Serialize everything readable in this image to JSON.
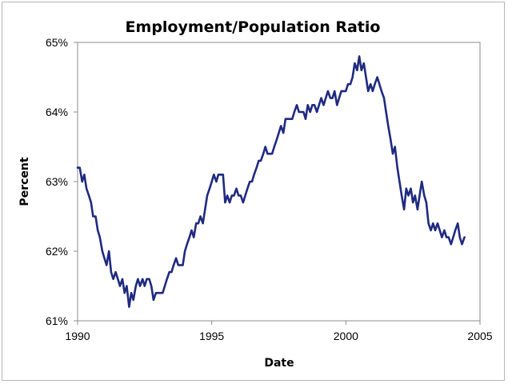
{
  "chart_data": {
    "type": "line",
    "title": "Employment/Population Ratio",
    "xlabel": "Date",
    "ylabel": "Percent",
    "xlim": [
      1990,
      2005
    ],
    "ylim": [
      61,
      65
    ],
    "x_ticks": [
      1990,
      1995,
      2000,
      2005
    ],
    "y_ticks": [
      61,
      62,
      63,
      64,
      65
    ],
    "x_tick_labels": [
      "1990",
      "1995",
      "2000",
      "2005"
    ],
    "y_tick_labels": [
      "61%",
      "62%",
      "63%",
      "64%",
      "65%"
    ],
    "grid": false,
    "legend": "none",
    "line_color": "#1f2a80",
    "series": [
      {
        "x": [
          1990.0,
          1990.08,
          1990.17,
          1990.25,
          1990.33,
          1990.42,
          1990.5,
          1990.58,
          1990.67,
          1990.75,
          1990.83,
          1990.92,
          1991.0,
          1991.08,
          1991.17,
          1991.25,
          1991.33,
          1991.42,
          1991.5,
          1991.58,
          1991.67,
          1991.75,
          1991.83,
          1991.92,
          1992.0,
          1992.08,
          1992.17,
          1992.25,
          1992.33,
          1992.42,
          1992.5,
          1992.58,
          1992.67,
          1992.75,
          1992.83,
          1992.92,
          1993.0,
          1993.08,
          1993.17,
          1993.25,
          1993.33,
          1993.42,
          1993.5,
          1993.58,
          1993.67,
          1993.75,
          1993.83,
          1993.92,
          1994.0,
          1994.08,
          1994.17,
          1994.25,
          1994.33,
          1994.42,
          1994.5,
          1994.58,
          1994.67,
          1994.75,
          1994.83,
          1994.92,
          1995.0,
          1995.08,
          1995.17,
          1995.25,
          1995.33,
          1995.42,
          1995.5,
          1995.58,
          1995.67,
          1995.75,
          1995.83,
          1995.92,
          1996.0,
          1996.08,
          1996.17,
          1996.25,
          1996.33,
          1996.42,
          1996.5,
          1996.58,
          1996.67,
          1996.75,
          1996.83,
          1996.92,
          1997.0,
          1997.08,
          1997.17,
          1997.25,
          1997.33,
          1997.42,
          1997.5,
          1997.58,
          1997.67,
          1997.75,
          1997.83,
          1997.92,
          1998.0,
          1998.08,
          1998.17,
          1998.25,
          1998.33,
          1998.42,
          1998.5,
          1998.58,
          1998.67,
          1998.75,
          1998.83,
          1998.92,
          1999.0,
          1999.08,
          1999.17,
          1999.25,
          1999.33,
          1999.42,
          1999.5,
          1999.58,
          1999.67,
          1999.75,
          1999.83,
          1999.92,
          2000.0,
          2000.08,
          2000.17,
          2000.25,
          2000.33,
          2000.42,
          2000.5,
          2000.58,
          2000.67,
          2000.75,
          2000.83,
          2000.92,
          2001.0,
          2001.08,
          2001.17,
          2001.25,
          2001.33,
          2001.42,
          2001.5,
          2001.58,
          2001.67,
          2001.75,
          2001.83,
          2001.92,
          2002.0,
          2002.08,
          2002.17,
          2002.25,
          2002.33,
          2002.42,
          2002.5,
          2002.58,
          2002.67,
          2002.75,
          2002.83,
          2002.92,
          2003.0,
          2003.08,
          2003.17,
          2003.25,
          2003.33,
          2003.42,
          2003.5,
          2003.58,
          2003.67,
          2003.75,
          2003.83,
          2003.92,
          2004.0,
          2004.08,
          2004.17,
          2004.25,
          2004.33,
          2004.42
        ],
        "values": [
          63.2,
          63.2,
          63.0,
          63.1,
          62.9,
          62.8,
          62.7,
          62.5,
          62.5,
          62.3,
          62.2,
          62.0,
          61.9,
          61.8,
          62.0,
          61.7,
          61.6,
          61.7,
          61.6,
          61.5,
          61.6,
          61.4,
          61.5,
          61.2,
          61.4,
          61.3,
          61.5,
          61.6,
          61.5,
          61.6,
          61.5,
          61.6,
          61.6,
          61.5,
          61.3,
          61.4,
          61.4,
          61.4,
          61.4,
          61.5,
          61.6,
          61.7,
          61.7,
          61.8,
          61.9,
          61.8,
          61.8,
          61.8,
          62.0,
          62.1,
          62.2,
          62.3,
          62.2,
          62.4,
          62.4,
          62.5,
          62.4,
          62.6,
          62.8,
          62.9,
          63.0,
          63.1,
          63.0,
          63.1,
          63.1,
          63.1,
          62.7,
          62.8,
          62.7,
          62.8,
          62.8,
          62.9,
          62.8,
          62.8,
          62.7,
          62.8,
          62.9,
          63.0,
          63.0,
          63.1,
          63.2,
          63.3,
          63.3,
          63.4,
          63.5,
          63.4,
          63.4,
          63.4,
          63.5,
          63.6,
          63.7,
          63.8,
          63.7,
          63.9,
          63.9,
          63.9,
          63.9,
          64.0,
          64.1,
          64.0,
          64.0,
          64.0,
          63.9,
          64.1,
          64.0,
          64.1,
          64.1,
          64.0,
          64.1,
          64.2,
          64.1,
          64.2,
          64.3,
          64.2,
          64.2,
          64.3,
          64.1,
          64.2,
          64.3,
          64.3,
          64.3,
          64.4,
          64.4,
          64.5,
          64.7,
          64.6,
          64.8,
          64.6,
          64.7,
          64.5,
          64.3,
          64.4,
          64.3,
          64.4,
          64.5,
          64.4,
          64.3,
          64.2,
          64.0,
          63.8,
          63.6,
          63.4,
          63.5,
          63.2,
          63.0,
          62.8,
          62.6,
          62.9,
          62.8,
          62.9,
          62.7,
          62.8,
          62.6,
          62.8,
          63.0,
          62.8,
          62.7,
          62.4,
          62.3,
          62.4,
          62.3,
          62.4,
          62.3,
          62.2,
          62.3,
          62.2,
          62.2,
          62.1,
          62.2,
          62.3,
          62.4,
          62.2,
          62.1,
          62.2
        ]
      }
    ]
  }
}
